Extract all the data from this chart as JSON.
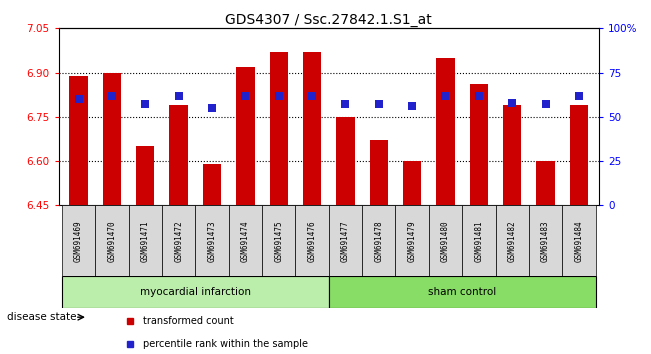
{
  "title": "GDS4307 / Ssc.27842.1.S1_at",
  "samples": [
    "GSM691469",
    "GSM691470",
    "GSM691471",
    "GSM691472",
    "GSM691473",
    "GSM691474",
    "GSM691475",
    "GSM691476",
    "GSM691477",
    "GSM691478",
    "GSM691479",
    "GSM691480",
    "GSM691481",
    "GSM691482",
    "GSM691483",
    "GSM691484"
  ],
  "red_values": [
    6.89,
    6.9,
    6.65,
    6.79,
    6.59,
    6.92,
    6.97,
    6.97,
    6.75,
    6.67,
    6.6,
    6.95,
    6.86,
    6.79,
    6.6,
    6.79
  ],
  "blue_percentile": [
    60,
    62,
    57,
    62,
    55,
    62,
    62,
    62,
    57,
    57,
    56,
    62,
    62,
    58,
    57,
    62
  ],
  "ylim_left": [
    6.45,
    7.05
  ],
  "ylim_right": [
    0,
    100
  ],
  "yticks_left": [
    6.45,
    6.6,
    6.75,
    6.9,
    7.05
  ],
  "yticks_right": [
    0,
    25,
    50,
    75,
    100
  ],
  "ytick_labels_right": [
    "0",
    "25",
    "50",
    "75",
    "100%"
  ],
  "bar_color": "#cc0000",
  "blue_color": "#2222cc",
  "base": 6.45,
  "group1_label": "myocardial infarction",
  "group2_label": "sham control",
  "group1_color": "#bbeeaa",
  "group2_color": "#88dd66",
  "disease_state_label": "disease state",
  "legend_red": "transformed count",
  "legend_blue": "percentile rank within the sample",
  "n_group1": 8,
  "n_group2": 8,
  "bar_width": 0.55,
  "blue_marker_size": 28,
  "n_samples": 16
}
